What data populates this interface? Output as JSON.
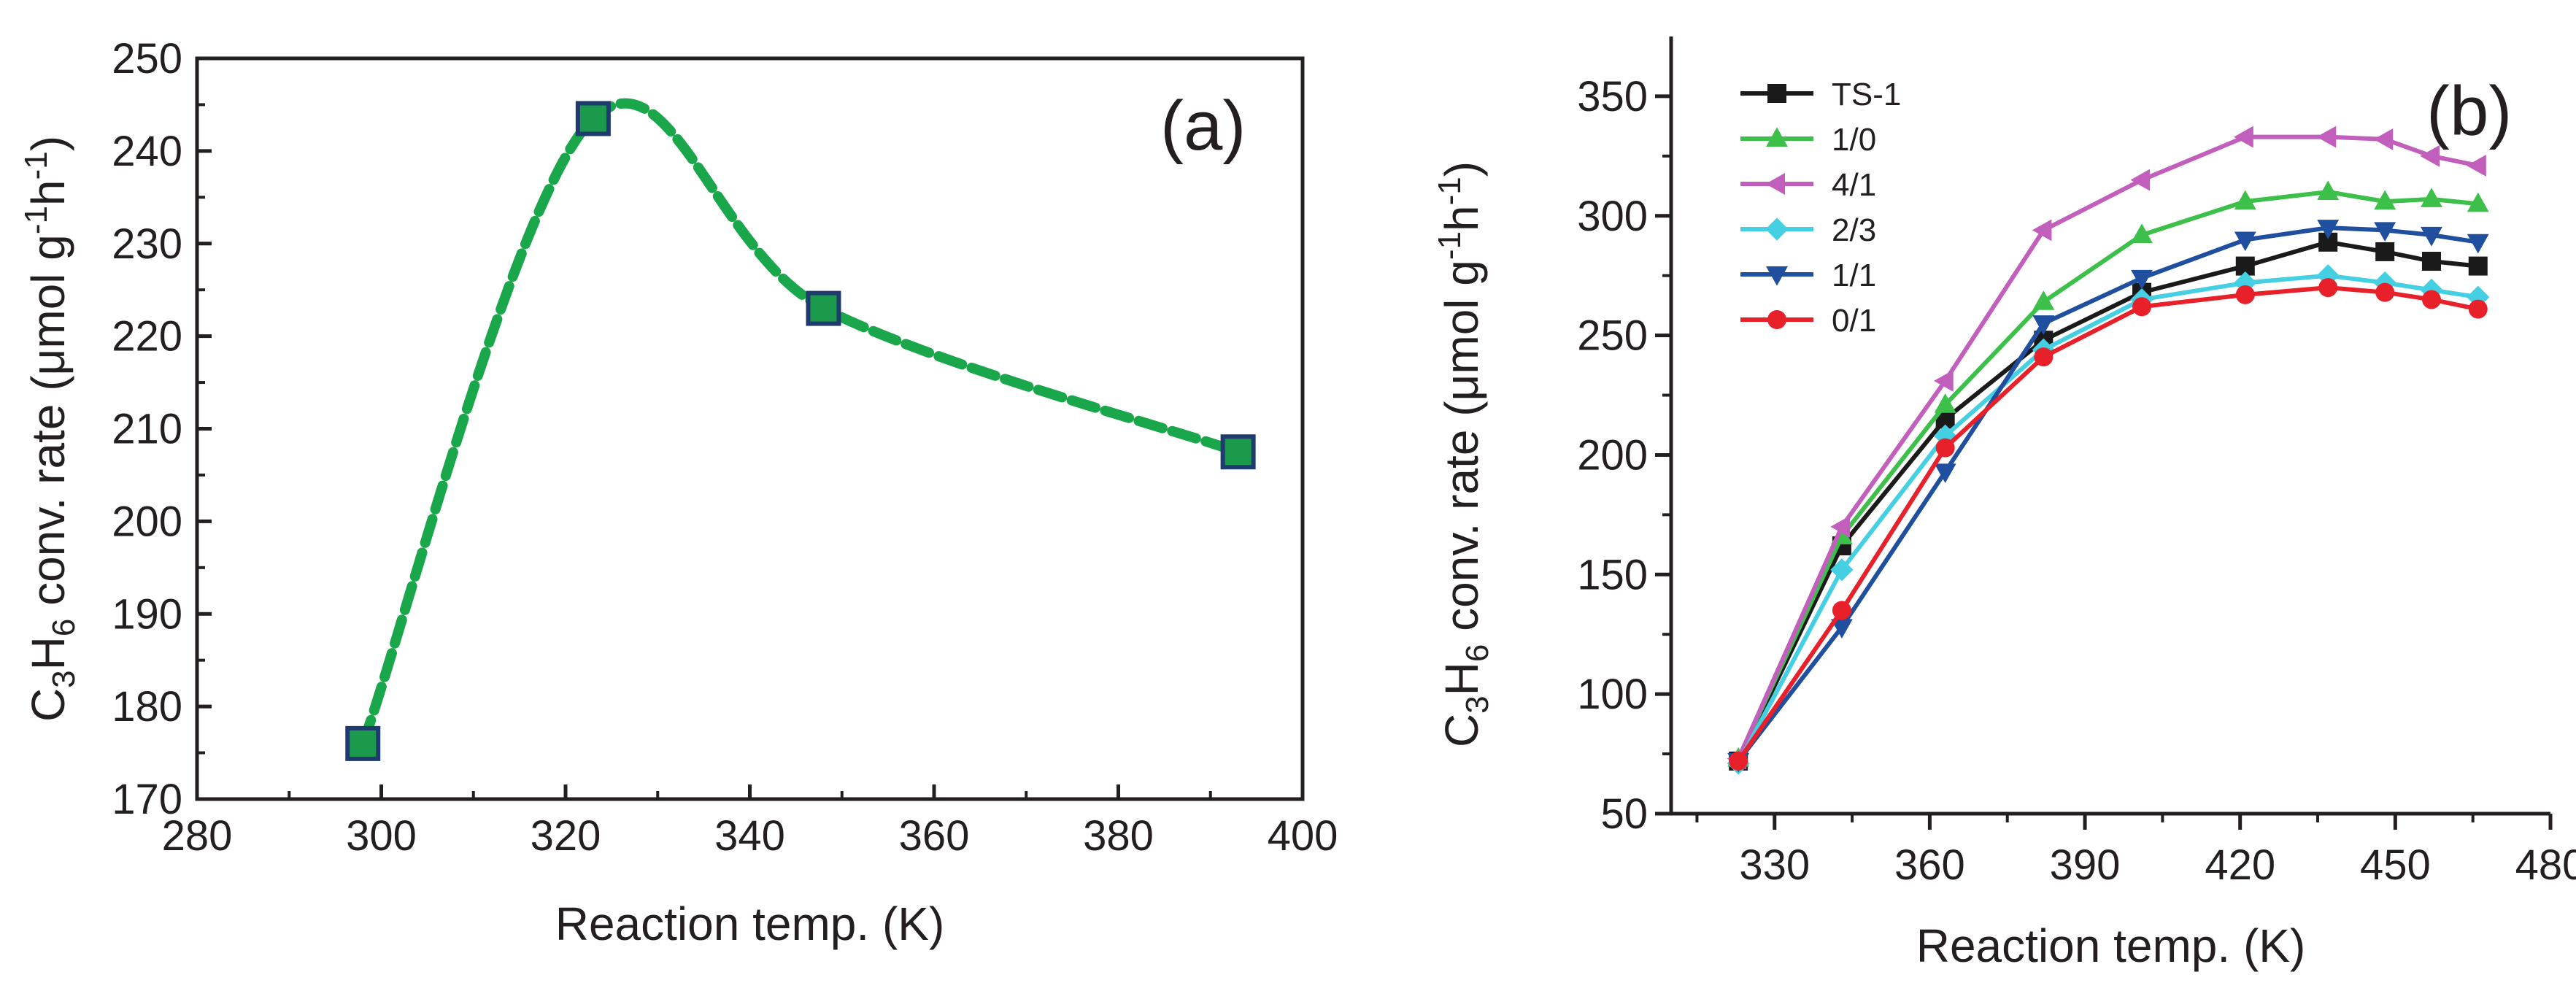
{
  "chart_data": [
    {
      "panel": "(a)",
      "type": "line",
      "style": "dashed smoothed curve with square markers",
      "xlabel": "Reaction temp. (K)",
      "ylabel": {
        "base": "C",
        "sub1": "3",
        "mid": "H",
        "sub2": "6",
        "rest": " conv. rate (μmol g",
        "sup1": "-1",
        "mid2": "h",
        "sup2": "-1",
        "close": ")"
      },
      "xlim": [
        280,
        400
      ],
      "ylim": [
        170,
        250
      ],
      "xticks": [
        280,
        300,
        320,
        340,
        360,
        380,
        400
      ],
      "yticks": [
        170,
        180,
        190,
        200,
        210,
        220,
        230,
        240,
        250
      ],
      "series": [
        {
          "name": "C3H6 conversion rate",
          "color": "#1aa64a",
          "marker_color": "#1a9a4a",
          "marker_edge": "#1f3a6e",
          "x": [
            298,
            323,
            348,
            393
          ],
          "y": [
            176,
            243.5,
            223,
            207.5
          ]
        }
      ]
    },
    {
      "panel": "(b)",
      "type": "line",
      "style": "solid lines with markers",
      "xlabel": "Reaction temp. (K)",
      "ylabel": {
        "base": "C",
        "sub1": "3",
        "mid": "H",
        "sub2": "6",
        "rest": " conv. rate (μmol g",
        "sup1": "-1",
        "mid2": "h",
        "sup2": "-1",
        "close": ")"
      },
      "xlim": [
        310,
        480
      ],
      "ylim": [
        50,
        375
      ],
      "xticks": [
        330,
        360,
        390,
        420,
        450,
        480
      ],
      "yticks": [
        50,
        100,
        150,
        200,
        250,
        300,
        350
      ],
      "x": [
        323,
        343,
        363,
        382,
        401,
        421,
        437,
        448,
        457,
        466
      ],
      "series": [
        {
          "name": "TS-1",
          "marker": "square",
          "color": "#1a1a1a",
          "values": [
            72,
            162,
            215,
            248,
            268,
            279,
            289,
            285,
            281,
            279
          ]
        },
        {
          "name": "1/0",
          "marker": "triangle-up",
          "color": "#3cc04a",
          "values": [
            73,
            166,
            221,
            264,
            292,
            306,
            310,
            306,
            307,
            305
          ]
        },
        {
          "name": "4/1",
          "marker": "triangle-left",
          "color": "#c25fbc",
          "values": [
            73,
            170,
            231,
            294,
            315,
            333,
            333,
            332,
            325,
            321
          ]
        },
        {
          "name": "2/3",
          "marker": "diamond",
          "color": "#44cfe3",
          "values": [
            71,
            152,
            208,
            244,
            265,
            272,
            275,
            272,
            269,
            266
          ]
        },
        {
          "name": "1/1",
          "marker": "triangle-down",
          "color": "#1f4f9e",
          "values": [
            72,
            128,
            193,
            255,
            274,
            290,
            295,
            294,
            292,
            289
          ]
        },
        {
          "name": "0/1",
          "marker": "circle",
          "color": "#e8202a",
          "values": [
            72,
            135,
            203,
            241,
            262,
            267,
            270,
            268,
            265,
            261
          ]
        }
      ]
    }
  ]
}
